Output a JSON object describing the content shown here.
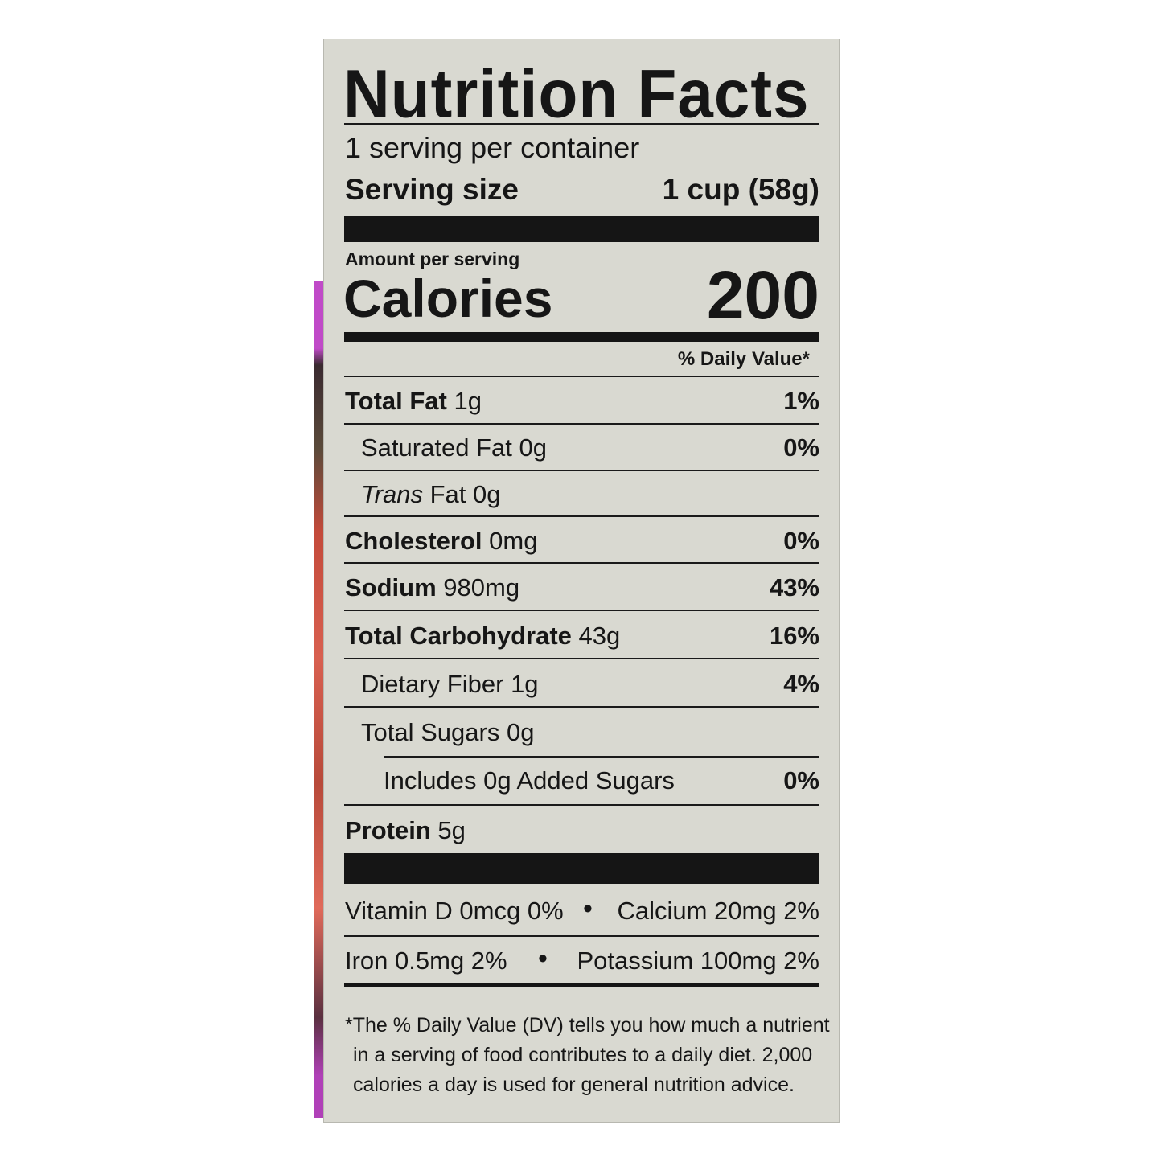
{
  "title": "Nutrition Facts",
  "servings_per_container": "1 serving per container",
  "serving_size": {
    "label": "Serving size",
    "value": "1 cup (58g)"
  },
  "amount_per_serving": "Amount per serving",
  "calories": {
    "label": "Calories",
    "value": "200"
  },
  "daily_value_header": "% Daily Value*",
  "nutrients": [
    {
      "name": "Total Fat",
      "amount": "1g",
      "dv": "1%"
    },
    {
      "name": "Saturated Fat",
      "amount": "0g",
      "dv": "0%"
    },
    {
      "name": "Trans",
      "amount": "Fat 0g",
      "dv": ""
    },
    {
      "name": "Cholesterol",
      "amount": "0mg",
      "dv": "0%"
    },
    {
      "name": "Sodium",
      "amount": "980mg",
      "dv": "43%"
    },
    {
      "name": "Total Carbohydrate",
      "amount": "43g",
      "dv": "16%"
    },
    {
      "name": "Dietary Fiber",
      "amount": "1g",
      "dv": "4%"
    },
    {
      "name": "Total Sugars",
      "amount": "0g",
      "dv": ""
    },
    {
      "name": "Includes 0g Added Sugars",
      "amount": "",
      "dv": "0%"
    },
    {
      "name": "Protein",
      "amount": "5g",
      "dv": ""
    }
  ],
  "vitamins": [
    {
      "left": "Vitamin D 0mcg 0%",
      "right": "Calcium 20mg 2%"
    },
    {
      "left": "Iron 0.5mg 2%",
      "right": "Potassium 100mg 2%"
    }
  ],
  "footnote": [
    "*The % Daily Value (DV) tells you how much a nutrient",
    "in a serving of food contributes to a daily diet. 2,000",
    "calories a day is used for general nutrition advice."
  ]
}
